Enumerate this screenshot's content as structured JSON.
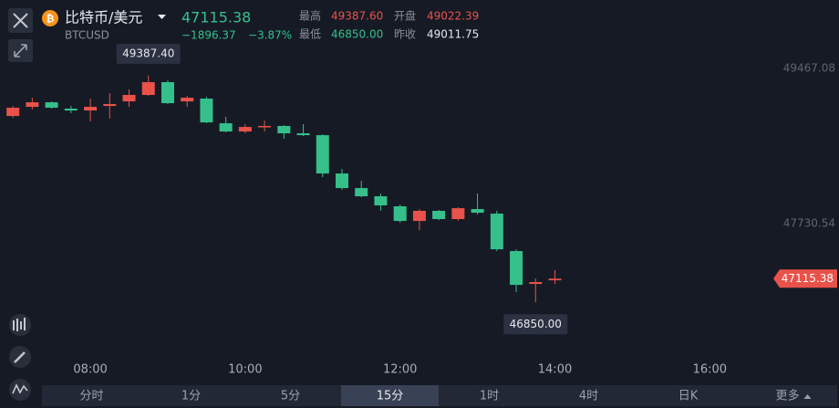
{
  "header": {
    "title": "比特币/美元",
    "symbol": "BTCUSD",
    "price": "47115.38",
    "change": "−1896.37",
    "change_pct": "−3.87%",
    "stats": [
      {
        "label": "最高",
        "value": "49387.60"
      },
      {
        "label": "开盘",
        "value": "49022.39"
      },
      {
        "label": "最低",
        "value": "46850.00"
      },
      {
        "label": "昨收",
        "value": "49011.75"
      }
    ]
  },
  "chart_data": {
    "type": "candlestick",
    "x": [
      "07:00",
      "07:15",
      "07:30",
      "07:45",
      "08:00",
      "08:15",
      "08:30",
      "08:45",
      "09:00",
      "09:15",
      "09:30",
      "09:45",
      "10:00",
      "10:15",
      "10:30",
      "10:45",
      "11:00",
      "11:15",
      "11:30",
      "11:45",
      "12:00",
      "12:15",
      "12:30",
      "12:45",
      "13:00",
      "13:15",
      "13:30",
      "13:45",
      "14:00"
    ],
    "open": [
      48936,
      49038,
      49089,
      49018,
      48997,
      49048,
      49099,
      49171,
      49314,
      49099,
      49130,
      48854,
      48762,
      48813,
      48824,
      48742,
      48721,
      48292,
      48129,
      48037,
      47925,
      47761,
      47874,
      47782,
      47894,
      47843,
      47424,
      47056,
      47097
    ],
    "high": [
      49048,
      49140,
      49099,
      49048,
      49130,
      49191,
      49232,
      49387.4,
      49334,
      49161,
      49150,
      48926,
      48844,
      48885,
      48834,
      48844,
      48732,
      48343,
      48211,
      48068,
      47945,
      47894,
      47884,
      47914,
      48068,
      47874,
      47444,
      47118,
      47210
    ],
    "low": [
      48915,
      49007,
      49018,
      48967,
      48875,
      48905,
      49038,
      49161,
      49069,
      49038,
      48854,
      48752,
      48742,
      48762,
      48680,
      48711,
      48251,
      48108,
      48027,
      47874,
      47741,
      47659,
      47771,
      47761,
      47833,
      47424,
      46964,
      46850,
      47056
    ],
    "close": [
      49028,
      49089,
      49028,
      48997,
      49038,
      49069,
      49171,
      49314,
      49079,
      49140,
      48864,
      48762,
      48813,
      48824,
      48742,
      48721,
      48292,
      48129,
      48037,
      47935,
      47761,
      47874,
      47782,
      47904,
      47853,
      47444,
      47046,
      47077,
      47115.38
    ],
    "up_color": "#e9524a",
    "down_color": "#35c08b",
    "xlim": [
      "06:50",
      "16:45"
    ],
    "xticks": [
      "08:00",
      "10:00",
      "12:00",
      "14:00",
      "16:00"
    ],
    "ylim": [
      46250,
      49825
    ],
    "yticks": [
      49467.08,
      47730.54
    ],
    "annotations": {
      "high": {
        "value": 49387.4,
        "label": "49387.40"
      },
      "low": {
        "value": 46850,
        "label": "46850.00"
      },
      "last": {
        "value": 47115.38,
        "label": "47115.38"
      }
    }
  },
  "tabs": [
    "分时",
    "1分",
    "5分",
    "15分",
    "1时",
    "4时",
    "日K",
    "更多"
  ],
  "active_tab": 3
}
